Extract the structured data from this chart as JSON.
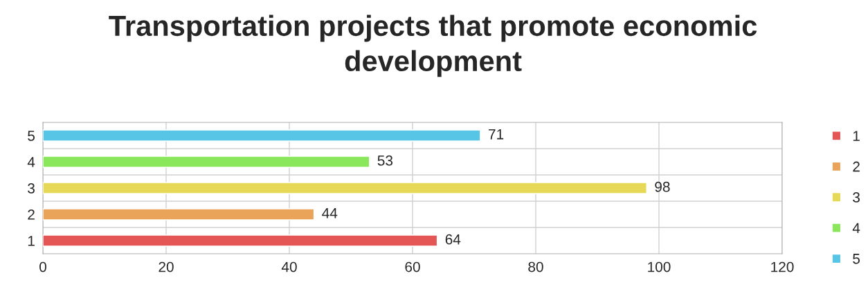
{
  "chart_data": {
    "type": "bar",
    "orientation": "horizontal",
    "stacked": true,
    "title": "Transportation projects that promote economic development",
    "categories": [
      "5",
      "4",
      "3",
      "2",
      "1"
    ],
    "series": [
      {
        "name": "1",
        "color": "#e45656",
        "values": [
          null,
          null,
          null,
          null,
          64
        ]
      },
      {
        "name": "2",
        "color": "#e9a45a",
        "values": [
          null,
          null,
          null,
          44,
          null
        ]
      },
      {
        "name": "3",
        "color": "#e6d957",
        "values": [
          null,
          null,
          98,
          null,
          null
        ]
      },
      {
        "name": "4",
        "color": "#8ae65a",
        "values": [
          null,
          53,
          null,
          null,
          null
        ]
      },
      {
        "name": "5",
        "color": "#56c5e6",
        "values": [
          71,
          null,
          null,
          null,
          null
        ]
      }
    ],
    "xlim": [
      0,
      120
    ],
    "xticks": [
      0,
      20,
      40,
      60,
      80,
      100,
      120
    ],
    "grid": true,
    "data_labels": true,
    "legend": "right"
  }
}
